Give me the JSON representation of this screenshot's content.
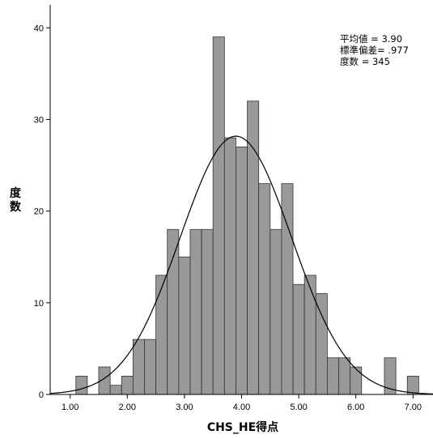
{
  "chart_data": {
    "type": "bar",
    "subtype": "histogram",
    "xlabel": "CHS_HE得点",
    "ylabel": "度数",
    "x_ticks": [
      {
        "value": 1.0,
        "label": "1.00"
      },
      {
        "value": 2.0,
        "label": "2.00"
      },
      {
        "value": 3.0,
        "label": "3.00"
      },
      {
        "value": 4.0,
        "label": "4.00"
      },
      {
        "value": 5.0,
        "label": "5.00"
      },
      {
        "value": 6.0,
        "label": "6.00"
      },
      {
        "value": 7.0,
        "label": "7.00"
      }
    ],
    "y_ticks": [
      {
        "value": 0,
        "label": "0"
      },
      {
        "value": 10,
        "label": "10"
      },
      {
        "value": 20,
        "label": "20"
      },
      {
        "value": 30,
        "label": "30"
      },
      {
        "value": 40,
        "label": "40"
      }
    ],
    "xlim": [
      0.65,
      7.35
    ],
    "ylim": [
      0,
      42.5
    ],
    "bin_width": 0.2,
    "bins": [
      {
        "center": 1.2,
        "count": 2
      },
      {
        "center": 1.6,
        "count": 3
      },
      {
        "center": 1.8,
        "count": 1
      },
      {
        "center": 2.0,
        "count": 2
      },
      {
        "center": 2.2,
        "count": 6
      },
      {
        "center": 2.4,
        "count": 6
      },
      {
        "center": 2.6,
        "count": 13
      },
      {
        "center": 2.8,
        "count": 18
      },
      {
        "center": 3.0,
        "count": 15
      },
      {
        "center": 3.2,
        "count": 18
      },
      {
        "center": 3.4,
        "count": 18
      },
      {
        "center": 3.6,
        "count": 39
      },
      {
        "center": 3.8,
        "count": 28
      },
      {
        "center": 4.0,
        "count": 27
      },
      {
        "center": 4.2,
        "count": 32
      },
      {
        "center": 4.4,
        "count": 23
      },
      {
        "center": 4.6,
        "count": 18
      },
      {
        "center": 4.8,
        "count": 23
      },
      {
        "center": 5.0,
        "count": 12
      },
      {
        "center": 5.2,
        "count": 13
      },
      {
        "center": 5.4,
        "count": 11
      },
      {
        "center": 5.6,
        "count": 4
      },
      {
        "center": 5.8,
        "count": 4
      },
      {
        "center": 6.0,
        "count": 3
      },
      {
        "center": 6.6,
        "count": 4
      },
      {
        "center": 7.0,
        "count": 2
      }
    ],
    "normal_curve": {
      "mean": 3.9,
      "sd": 0.977,
      "n": 345
    },
    "stats": [
      "平均値 = 3.90",
      "標準偏差= .977",
      "度数 = 345"
    ],
    "colors": {
      "bar_fill": "#999999",
      "bar_stroke": "#333333",
      "curve": "#000000",
      "axis": "#000000"
    },
    "grid": false,
    "stats_position": "top-right"
  }
}
